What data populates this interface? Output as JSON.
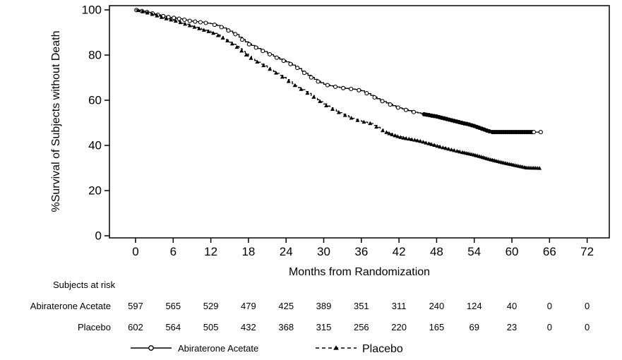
{
  "figure": {
    "background": "#ffffff",
    "ink_color": "#000000"
  },
  "chart_data": {
    "type": "line",
    "subtype": "kaplan-meier-step",
    "title": "",
    "xlabel": "Months from Randomization",
    "ylabel": "%Survival of Subjects without Death",
    "x_ticks": [
      0,
      6,
      12,
      18,
      24,
      30,
      36,
      42,
      48,
      54,
      60,
      66,
      72
    ],
    "y_ticks": [
      0,
      20,
      40,
      60,
      80,
      100
    ],
    "xlim": [
      0,
      75.5
    ],
    "ylim": [
      0,
      100
    ],
    "grid": false,
    "legend_position": "bottom",
    "series": [
      {
        "name": "Abiraterone Acetate",
        "line": "solid",
        "marker": "open-circle",
        "color": "#000000",
        "points": [
          [
            0,
            100
          ],
          [
            0.6,
            99.7
          ],
          [
            1.5,
            99.2
          ],
          [
            2.5,
            98.6
          ],
          [
            3.5,
            97.8
          ],
          [
            4.5,
            97.2
          ],
          [
            5.5,
            96.7
          ],
          [
            6.5,
            96.3
          ],
          [
            7.5,
            95.8
          ],
          [
            8.5,
            95.2
          ],
          [
            9.5,
            94.8
          ],
          [
            11,
            94.3
          ],
          [
            12,
            93.9
          ],
          [
            13,
            93.1
          ],
          [
            14,
            92.0
          ],
          [
            15,
            90.6
          ],
          [
            16,
            89.1
          ],
          [
            17,
            86.8
          ],
          [
            18,
            84.9
          ],
          [
            19,
            83.6
          ],
          [
            20,
            82.2
          ],
          [
            21,
            80.9
          ],
          [
            22,
            79.5
          ],
          [
            23,
            78.2
          ],
          [
            24,
            77.0
          ],
          [
            25,
            75.6
          ],
          [
            26,
            74.0
          ],
          [
            27,
            71.9
          ],
          [
            28,
            70.1
          ],
          [
            29,
            68.4
          ],
          [
            30,
            67.1
          ],
          [
            31,
            66.4
          ],
          [
            32,
            65.9
          ],
          [
            33,
            65.4
          ],
          [
            34,
            65.1
          ],
          [
            35,
            64.8
          ],
          [
            36,
            64.2
          ],
          [
            37,
            62.9
          ],
          [
            38,
            61.4
          ],
          [
            39,
            60.0
          ],
          [
            40,
            58.8
          ],
          [
            41,
            57.6
          ],
          [
            42,
            56.6
          ],
          [
            43,
            55.8
          ],
          [
            44,
            55.0
          ],
          [
            45,
            54.4
          ],
          [
            46,
            53.8
          ],
          [
            47,
            53.3
          ],
          [
            48,
            52.8
          ],
          [
            49,
            52.1
          ],
          [
            50,
            51.4
          ],
          [
            51,
            50.7
          ],
          [
            52,
            50.0
          ],
          [
            53,
            49.4
          ],
          [
            54,
            48.6
          ],
          [
            55,
            47.6
          ],
          [
            56,
            46.6
          ],
          [
            56.8,
            45.9
          ],
          [
            64.6,
            45.9
          ]
        ],
        "marker_rules": [
          {
            "from": 0.15,
            "to": 11.9,
            "step": 0.85,
            "solid": false
          },
          {
            "from": 12.6,
            "to": 29.8,
            "step": 1.1,
            "solid": false
          },
          {
            "from": 30.6,
            "to": 45.5,
            "step": 1.25,
            "solid": false
          },
          {
            "from": 46,
            "to": 56.6,
            "step": 0.4,
            "solid": true
          },
          {
            "from": 56.9,
            "to": 63.2,
            "step": 0.3,
            "solid": true
          },
          {
            "from": 63.5,
            "to": 64.7,
            "step": 1.1,
            "solid": false
          }
        ]
      },
      {
        "name": "Placebo",
        "line": "dashed",
        "marker": "filled-triangle",
        "color": "#000000",
        "points": [
          [
            0,
            100
          ],
          [
            0.6,
            99.6
          ],
          [
            1.5,
            99.0
          ],
          [
            2.5,
            98.2
          ],
          [
            3.5,
            97.3
          ],
          [
            4.5,
            96.4
          ],
          [
            5.5,
            95.7
          ],
          [
            6.5,
            95.0
          ],
          [
            7.5,
            94.1
          ],
          [
            8.5,
            93.2
          ],
          [
            9.5,
            92.3
          ],
          [
            10.5,
            91.4
          ],
          [
            11.5,
            90.6
          ],
          [
            12.5,
            89.6
          ],
          [
            13.5,
            88.2
          ],
          [
            14.5,
            86.6
          ],
          [
            15.5,
            84.8
          ],
          [
            16.5,
            82.8
          ],
          [
            17.5,
            80.4
          ],
          [
            18.5,
            78.4
          ],
          [
            19.5,
            76.8
          ],
          [
            20.5,
            75.2
          ],
          [
            21.5,
            73.6
          ],
          [
            22.5,
            71.9
          ],
          [
            23.5,
            70.1
          ],
          [
            24.5,
            68.2
          ],
          [
            25.5,
            66.4
          ],
          [
            26.5,
            64.7
          ],
          [
            27.5,
            63.0
          ],
          [
            28.5,
            61.2
          ],
          [
            29.5,
            59.3
          ],
          [
            30.5,
            57.4
          ],
          [
            31.5,
            55.9
          ],
          [
            32.5,
            54.5
          ],
          [
            33.5,
            53.2
          ],
          [
            34.5,
            52.0
          ],
          [
            35.5,
            51.0
          ],
          [
            36.5,
            50.3
          ],
          [
            37.5,
            49.7
          ],
          [
            38.5,
            48.0
          ],
          [
            39.5,
            46.4
          ],
          [
            40.5,
            45.2
          ],
          [
            41.5,
            44.2
          ],
          [
            42.5,
            43.4
          ],
          [
            43.5,
            42.9
          ],
          [
            44.5,
            42.4
          ],
          [
            45.5,
            41.8
          ],
          [
            46.5,
            41.0
          ],
          [
            47.5,
            40.2
          ],
          [
            48.5,
            39.4
          ],
          [
            49.5,
            38.7
          ],
          [
            50.5,
            38.0
          ],
          [
            51.5,
            37.3
          ],
          [
            52.5,
            36.7
          ],
          [
            53.5,
            36.1
          ],
          [
            54.5,
            35.4
          ],
          [
            55.5,
            34.6
          ],
          [
            56.5,
            33.8
          ],
          [
            57.5,
            33.1
          ],
          [
            58.5,
            32.4
          ],
          [
            59.5,
            31.8
          ],
          [
            60.5,
            31.2
          ],
          [
            61.5,
            30.6
          ],
          [
            62.3,
            30.1
          ],
          [
            64.5,
            29.9
          ]
        ],
        "marker_rules": [
          {
            "from": 0.4,
            "to": 17.8,
            "step": 0.75,
            "solid": true
          },
          {
            "from": 18.4,
            "to": 39.6,
            "step": 1.0,
            "solid": true
          },
          {
            "from": 40,
            "to": 51.8,
            "step": 0.45,
            "solid": true
          },
          {
            "from": 52.1,
            "to": 64.45,
            "step": 0.3,
            "solid": true
          }
        ]
      }
    ]
  },
  "risk_table": {
    "title": "Subjects at risk",
    "time_points": [
      0,
      6,
      12,
      18,
      24,
      30,
      36,
      42,
      48,
      54,
      60,
      66,
      72
    ],
    "rows": [
      {
        "label": "Abiraterone Acetate",
        "values": [
          "597",
          "565",
          "529",
          "479",
          "425",
          "389",
          "351",
          "311",
          "240",
          "124",
          "40",
          "0",
          "0"
        ]
      },
      {
        "label": "Placebo",
        "values": [
          "602",
          "564",
          "505",
          "432",
          "368",
          "315",
          "256",
          "220",
          "165",
          "69",
          "23",
          "0",
          "0"
        ]
      }
    ]
  },
  "legend": {
    "items": [
      {
        "label": "Abiraterone Acetate",
        "line": "solid",
        "marker": "open-circle"
      },
      {
        "label": "Placebo",
        "line": "dashed",
        "marker": "filled-triangle"
      }
    ]
  }
}
